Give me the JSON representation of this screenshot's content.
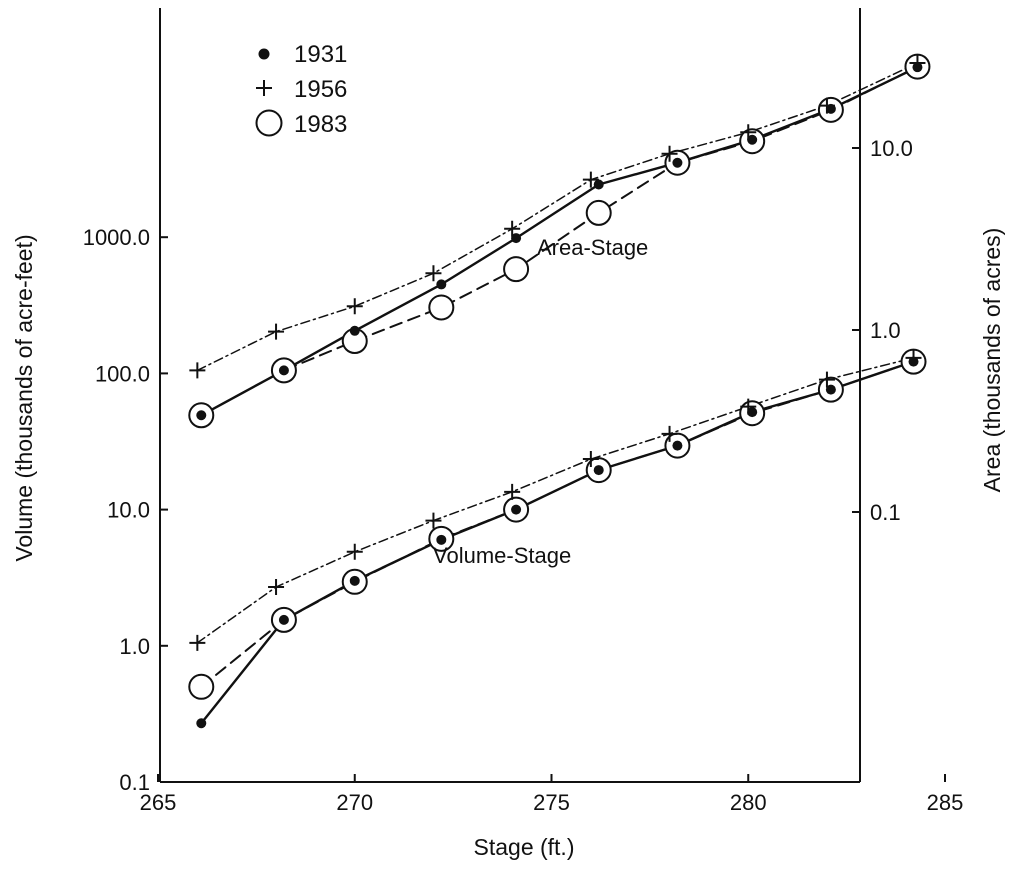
{
  "chart_data": {
    "type": "line",
    "x_axis": {
      "label": "Stage (ft.)",
      "range": [
        265,
        286
      ],
      "ticks": [
        265,
        270,
        275,
        280,
        285
      ],
      "tick_labels": [
        "265",
        "270",
        "275",
        "280",
        "285"
      ]
    },
    "y_axis_left": {
      "label": "Volume (thousands of acre-feet)",
      "scale": "log",
      "range": [
        0.1,
        1000
      ],
      "ticks": [
        0.1,
        1,
        10,
        100,
        1000
      ],
      "tick_labels": [
        "0.1",
        "1.0",
        "10.0",
        "100.0",
        "1000.0"
      ]
    },
    "y_axis_right": {
      "label": "Area (thousands of acres)",
      "scale": "log",
      "range": [
        0.0272,
        49.9
      ],
      "ticks": [
        0.1,
        1,
        10
      ],
      "tick_labels": [
        "0.1",
        "1.0",
        "10.0"
      ]
    },
    "legend": {
      "placement": "top-left",
      "entries": [
        {
          "label": "1931",
          "marker": "dot"
        },
        {
          "label": "1956",
          "marker": "plus"
        },
        {
          "label": "1983",
          "marker": "open-circle"
        }
      ]
    },
    "annotations": [
      "Area-Stage",
      "Volume-Stage"
    ],
    "grid": false,
    "groups": [
      {
        "name": "Volume-Stage",
        "axis": "left",
        "series": [
          {
            "name": "1931",
            "x": [
              266.1,
              268.2,
              270.0,
              272.2,
              274.1,
              276.2,
              278.2,
              280.1,
              282.1,
              284.2
            ],
            "y": [
              0.27,
              1.55,
              3.0,
              6.0,
              10.0,
              19.5,
              29.5,
              52,
              76,
              122
            ]
          },
          {
            "name": "1956",
            "x": [
              266.0,
              268.0,
              270.0,
              272.0,
              274.0,
              276.0,
              278.0,
              280.0,
              282.0,
              284.2
            ],
            "y": [
              1.05,
              2.7,
              4.9,
              8.3,
              13.5,
              23.5,
              36,
              57,
              90,
              130
            ]
          },
          {
            "name": "1983",
            "x": [
              266.1,
              268.2,
              270.0,
              272.2,
              274.1,
              276.2,
              278.2,
              280.1,
              282.1,
              284.2
            ],
            "y": [
              0.5,
              1.55,
              2.95,
              6.1,
              10.0,
              19.5,
              29.5,
              51,
              76,
              122
            ]
          }
        ]
      },
      {
        "name": "Area-Stage",
        "axis": "right",
        "series": [
          {
            "name": "1931",
            "x": [
              266.1,
              268.2,
              270.0,
              272.2,
              274.1,
              276.2,
              278.2,
              280.1,
              282.1,
              284.3
            ],
            "y": [
              0.34,
              0.6,
              0.99,
              1.78,
              3.2,
              6.3,
              8.3,
              11.1,
              16.4,
              27.8
            ]
          },
          {
            "name": "1956",
            "x": [
              266.0,
              268.0,
              270.0,
              272.0,
              274.0,
              276.0,
              278.0,
              280.0,
              282.0,
              284.3
            ],
            "y": [
              0.6,
              0.98,
              1.35,
              2.05,
              3.6,
              6.7,
              9.3,
              12.2,
              17.1,
              29.3
            ]
          },
          {
            "name": "1983",
            "x": [
              266.1,
              268.2,
              270.0,
              272.2,
              274.1,
              276.2,
              278.2,
              280.1,
              282.1,
              284.3
            ],
            "y": [
              0.34,
              0.6,
              0.87,
              1.33,
              2.16,
              4.4,
              8.3,
              10.9,
              16.2,
              28.0
            ]
          }
        ]
      }
    ]
  }
}
